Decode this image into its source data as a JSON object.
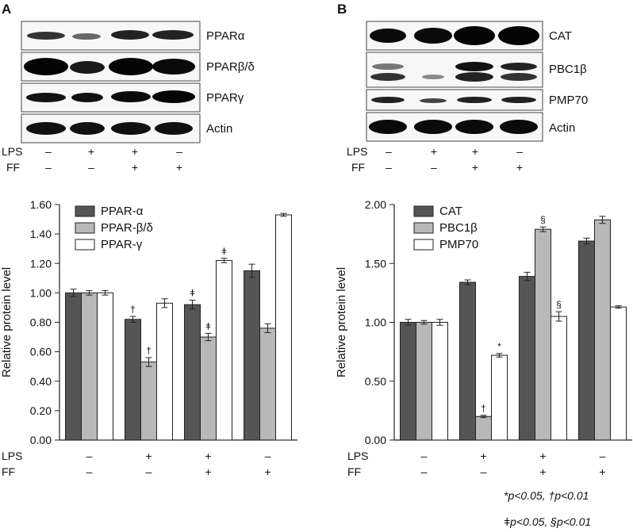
{
  "panels": [
    {
      "letter": "A",
      "blots": [
        "PPARα",
        "PPARβ/δ",
        "PPARγ",
        "Actin"
      ],
      "lps": [
        "–",
        "+",
        "+",
        "–"
      ],
      "ff": [
        "–",
        "–",
        "+",
        "+"
      ],
      "lps_label": "LPS",
      "ff_label": "FF"
    },
    {
      "letter": "B",
      "blots": [
        "CAT",
        "PBC1β",
        "PMP70",
        "Actin"
      ],
      "lps": [
        "–",
        "+",
        "+",
        "–"
      ],
      "ff": [
        "–",
        "–",
        "+",
        "+"
      ],
      "lps_label": "LPS",
      "ff_label": "FF"
    }
  ],
  "footnote": {
    "line1": "*p<0.05, †p<0.01",
    "line2": "ǂp<0.05, §p<0.01"
  },
  "colors": {
    "dark": "#555555",
    "light": "#b8b8b8",
    "white": "#ffffff",
    "axis": "#222222"
  },
  "chart_data": [
    {
      "type": "bar",
      "ylabel": "Relative protein level",
      "ylim": [
        0,
        1.6
      ],
      "yticks": [
        "0.00",
        "0.20",
        "0.40",
        "0.60",
        "0.80",
        "1.00",
        "1.20",
        "1.40",
        "1.60"
      ],
      "categories": [
        "1",
        "2",
        "3",
        "4"
      ],
      "x_rows": [
        {
          "label": "LPS",
          "values": [
            "–",
            "+",
            "+",
            "–"
          ]
        },
        {
          "label": "FF",
          "values": [
            "–",
            "–",
            "+",
            "+"
          ]
        }
      ],
      "legend": "top-left",
      "series": [
        {
          "name": "PPAR-α",
          "color": "#555555",
          "values": [
            1.0,
            0.82,
            0.92,
            1.15
          ],
          "errors": [
            0.025,
            0.02,
            0.03,
            0.045
          ],
          "marks": [
            "",
            "†",
            "ǂ",
            ""
          ]
        },
        {
          "name": "PPAR-β/δ",
          "color": "#b8b8b8",
          "values": [
            1.0,
            0.53,
            0.7,
            0.76
          ],
          "errors": [
            0.015,
            0.03,
            0.025,
            0.03
          ],
          "marks": [
            "",
            "†",
            "ǂ",
            ""
          ]
        },
        {
          "name": "PPAR-γ",
          "color": "#ffffff",
          "values": [
            1.0,
            0.93,
            1.22,
            1.53
          ],
          "errors": [
            0.015,
            0.03,
            0.015,
            0.01
          ],
          "marks": [
            "",
            "",
            "ǂ",
            ""
          ]
        }
      ]
    },
    {
      "type": "bar",
      "ylabel": "Relative protein level",
      "ylim": [
        0,
        2.0
      ],
      "yticks": [
        "0.00",
        "0.50",
        "1.00",
        "1.50",
        "2.00"
      ],
      "categories": [
        "1",
        "2",
        "3",
        "4"
      ],
      "x_rows": [
        {
          "label": "LPS",
          "values": [
            "–",
            "+",
            "+",
            "–"
          ]
        },
        {
          "label": "FF",
          "values": [
            "–",
            "–",
            "+",
            "+"
          ]
        }
      ],
      "legend": "top-left",
      "series": [
        {
          "name": "CAT",
          "color": "#555555",
          "values": [
            1.0,
            1.34,
            1.39,
            1.69
          ],
          "errors": [
            0.025,
            0.02,
            0.035,
            0.025
          ],
          "marks": [
            "",
            "",
            "",
            ""
          ]
        },
        {
          "name": "PBC1β",
          "color": "#b8b8b8",
          "values": [
            1.0,
            0.2,
            1.79,
            1.87
          ],
          "errors": [
            0.015,
            0.01,
            0.02,
            0.03
          ],
          "marks": [
            "",
            "†",
            "§",
            ""
          ]
        },
        {
          "name": "PMP70",
          "color": "#ffffff",
          "values": [
            1.0,
            0.72,
            1.05,
            1.13
          ],
          "errors": [
            0.025,
            0.015,
            0.04,
            0.01
          ],
          "marks": [
            "",
            "*",
            "§",
            ""
          ]
        }
      ]
    }
  ]
}
